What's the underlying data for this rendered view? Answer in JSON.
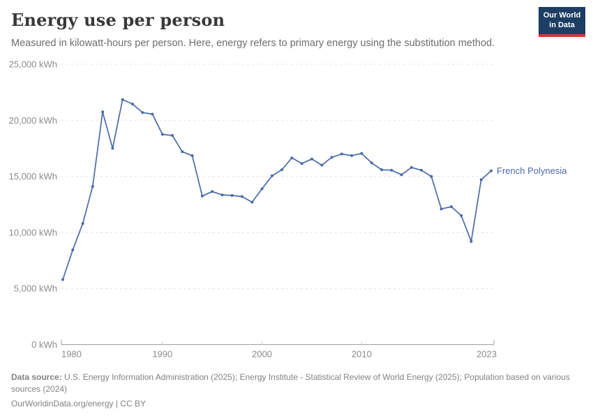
{
  "header": {
    "title": "Energy use per person",
    "subtitle": "Measured in kilowatt-hours per person. Here, energy refers to primary energy using the substitution method.",
    "logo": {
      "line1": "Our World",
      "line2": "in Data",
      "bg_color": "#1d3d63",
      "accent_color": "#d63a33"
    }
  },
  "chart_data": {
    "type": "line",
    "title": "Energy use per person",
    "unit": "kWh",
    "x": [
      1980,
      1981,
      1982,
      1983,
      1984,
      1985,
      1986,
      1987,
      1988,
      1989,
      1990,
      1991,
      1992,
      1993,
      1994,
      1995,
      1996,
      1997,
      1998,
      1999,
      2000,
      2001,
      2002,
      2003,
      2004,
      2005,
      2006,
      2007,
      2008,
      2009,
      2010,
      2011,
      2012,
      2013,
      2014,
      2015,
      2016,
      2017,
      2018,
      2019,
      2020,
      2021,
      2022,
      2023
    ],
    "series": [
      {
        "name": "French Polynesia",
        "color": "#4a6ba8",
        "values": [
          5800,
          8450,
          10800,
          14100,
          20750,
          17500,
          21850,
          21450,
          20700,
          20550,
          18750,
          18650,
          17200,
          16850,
          13250,
          13650,
          13350,
          13300,
          13200,
          12700,
          13900,
          15050,
          15600,
          16650,
          16150,
          16550,
          16000,
          16700,
          17000,
          16850,
          17050,
          16200,
          15600,
          15550,
          15150,
          15800,
          15550,
          15000,
          12100,
          12300,
          11500,
          9200,
          14700,
          15500
        ]
      }
    ],
    "xlim": [
      1980,
      2023
    ],
    "ylim": [
      0,
      25000
    ],
    "x_ticks": [
      1980,
      1990,
      2000,
      2010,
      2023
    ],
    "y_ticks": [
      0,
      5000,
      10000,
      15000,
      20000,
      25000
    ],
    "y_tick_suffix": " kWh",
    "grid": "horizontal-dashed",
    "legend_position": "end-of-line-label",
    "grid_color": "#e2e2e2",
    "axis_color": "#9e9e9e",
    "tick_label_color": "#8b8b8b"
  },
  "footer": {
    "source_label": "Data source:",
    "source_text": " U.S. Energy Information Administration (2025); Energy Institute - Statistical Review of World Energy (2025); Population based on various sources (2024)",
    "license_text": "OurWorldinData.org/energy | CC BY"
  }
}
